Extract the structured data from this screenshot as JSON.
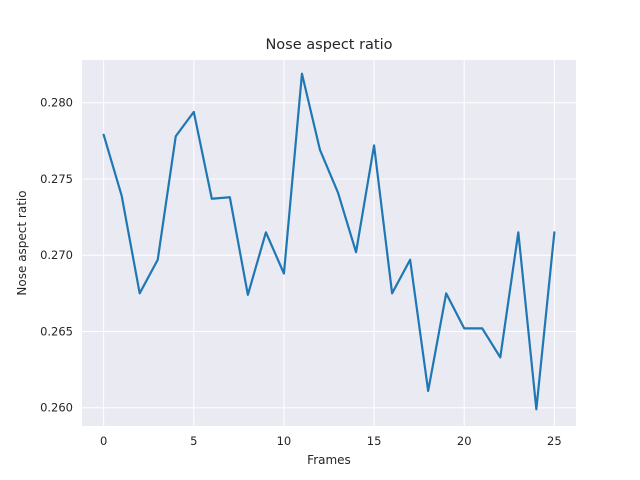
{
  "chart_data": {
    "type": "line",
    "title": "Nose aspect ratio",
    "xlabel": "Frames",
    "ylabel": "Nose aspect ratio",
    "xlim": [
      -1.2,
      26.2
    ],
    "ylim": [
      0.2588,
      0.2828
    ],
    "xticks": [
      0,
      5,
      10,
      15,
      20,
      25
    ],
    "yticks": [
      0.26,
      0.265,
      0.27,
      0.275,
      0.28
    ],
    "ytick_labels": [
      "0.260",
      "0.265",
      "0.270",
      "0.275",
      "0.280"
    ],
    "grid": true,
    "background": "#eaeaf2",
    "series": [
      {
        "color": "#1f77b4",
        "x": [
          0,
          1,
          2,
          3,
          4,
          5,
          6,
          7,
          8,
          9,
          10,
          11,
          12,
          13,
          14,
          15,
          16,
          17,
          18,
          19,
          20,
          21,
          22,
          23,
          24,
          25
        ],
        "y": [
          0.2779,
          0.2739,
          0.2675,
          0.2697,
          0.2778,
          0.2794,
          0.2737,
          0.2738,
          0.2674,
          0.2715,
          0.2688,
          0.2819,
          0.2769,
          0.2741,
          0.2702,
          0.2772,
          0.2675,
          0.2697,
          0.2611,
          0.2675,
          0.2652,
          0.2652,
          0.2633,
          0.2715,
          0.2599,
          0.2715
        ]
      }
    ]
  }
}
